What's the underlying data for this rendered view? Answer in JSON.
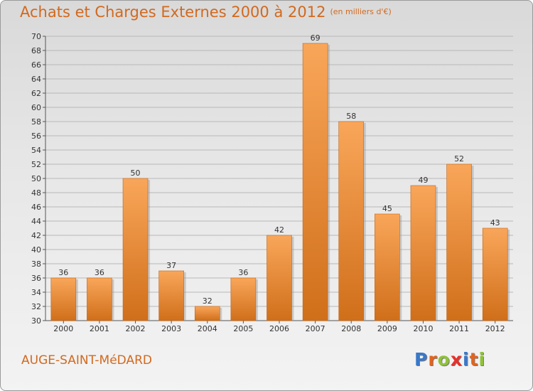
{
  "title": "Achats et Charges Externes 2000 à 2012",
  "subtitle": "(en milliers d'€)",
  "town": "AUGE-SAINT-MéDARD",
  "logo": [
    "P",
    "r",
    "o",
    "x",
    "i",
    "t",
    "i"
  ],
  "colors": {
    "bar_top": "#f9a65a",
    "bar_bottom": "#d06f1a",
    "accent": "#d2691e",
    "logo": [
      "#3a78c8",
      "#e2641e",
      "#8fc23a",
      "#e8302a",
      "#3a78c8",
      "#e2641e",
      "#8fc23a"
    ]
  },
  "chart_data": {
    "type": "bar",
    "categories": [
      "2000",
      "2001",
      "2002",
      "2003",
      "2004",
      "2005",
      "2006",
      "2007",
      "2008",
      "2009",
      "2010",
      "2011",
      "2012"
    ],
    "values": [
      36,
      36,
      50,
      37,
      32,
      36,
      42,
      69,
      58,
      45,
      49,
      52,
      43
    ],
    "ylim": [
      30,
      70
    ],
    "yticks": [
      30,
      32,
      34,
      36,
      38,
      40,
      42,
      44,
      46,
      48,
      50,
      52,
      54,
      56,
      58,
      60,
      62,
      64,
      66,
      68,
      70
    ],
    "grid": true
  }
}
